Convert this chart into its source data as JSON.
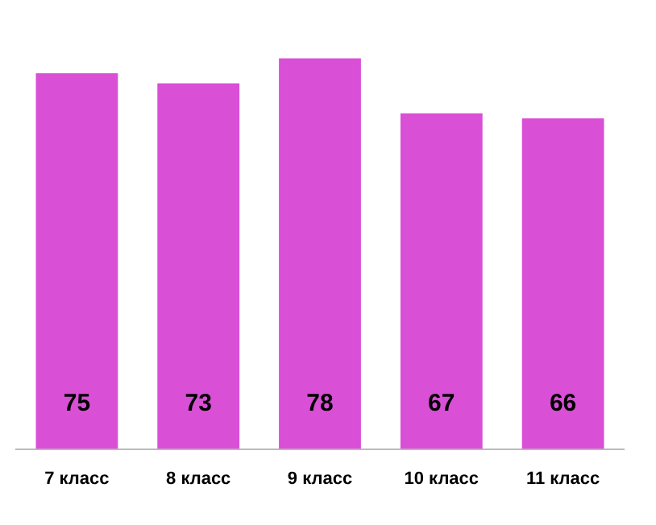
{
  "chart_data": {
    "type": "bar",
    "categories": [
      "7 класс",
      "8 класс",
      "9 класс",
      "10 класс",
      "11 класс"
    ],
    "values": [
      75,
      73,
      78,
      67,
      66
    ],
    "color": "#d94fd6",
    "data_labels": true,
    "grid": false,
    "legend": false,
    "tick_labels": "x"
  }
}
